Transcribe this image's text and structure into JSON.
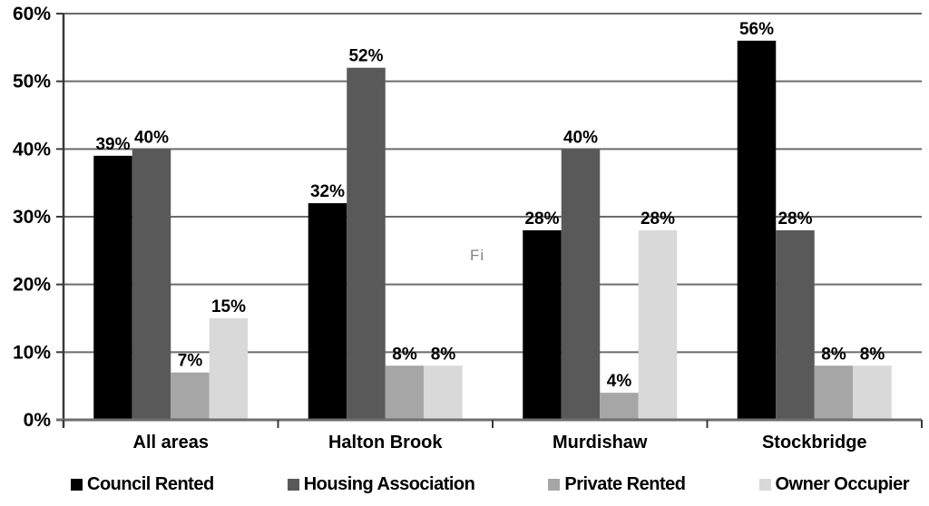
{
  "stray_text": "Fi",
  "colors": {
    "gridline": "#6b6b6b",
    "x_axis_line": "#6e6e6e",
    "y_axis_line": "#3a3a3a",
    "tick": "#3a3a3a",
    "label_text": "#000000",
    "stray_text": "#808080",
    "background": "#ffffff"
  },
  "chart_data": {
    "type": "bar",
    "title": "",
    "xlabel": "",
    "ylabel": "",
    "categories": [
      "All areas",
      "Halton Brook",
      "Murdishaw",
      "Stockbridge"
    ],
    "series": [
      {
        "name": "Council Rented",
        "color": "#000000",
        "values": [
          39,
          32,
          28,
          56
        ]
      },
      {
        "name": "Housing Association",
        "color": "#595959",
        "values": [
          40,
          52,
          40,
          28
        ]
      },
      {
        "name": "Private Rented",
        "color": "#a6a6a6",
        "values": [
          7,
          8,
          4,
          8
        ]
      },
      {
        "name": "Owner Occupier",
        "color": "#d9d9d9",
        "values": [
          15,
          8,
          28,
          8
        ]
      }
    ],
    "value_suffix": "%",
    "ylim": [
      0,
      60
    ],
    "ytick_step": 10,
    "ytick_labels": [
      "0%",
      "10%",
      "20%",
      "30%",
      "40%",
      "50%",
      "60%"
    ],
    "grid": true,
    "data_labels_shown": true,
    "legend_position": "bottom"
  }
}
